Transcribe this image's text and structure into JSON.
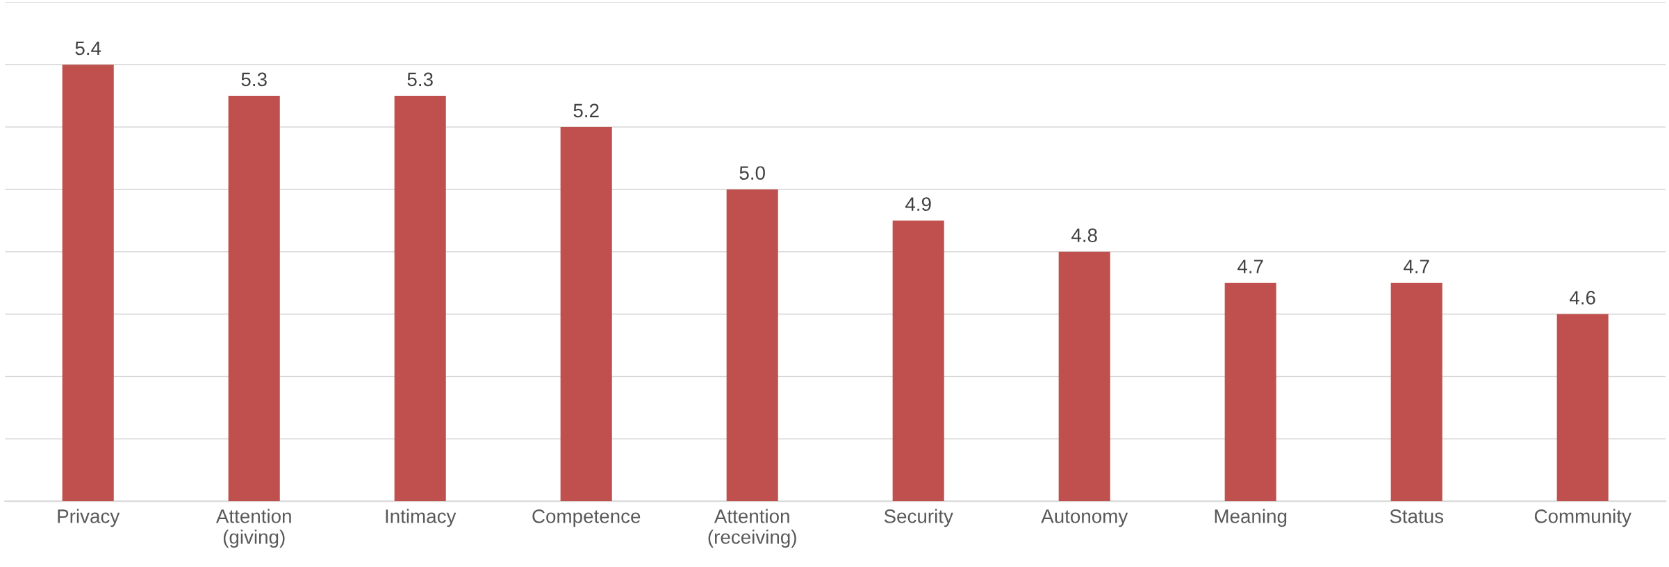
{
  "chart_data": {
    "type": "bar",
    "categories": [
      "Privacy",
      "Attention\n(giving)",
      "Intimacy",
      "Competence",
      "Attention\n(receiving)",
      "Security",
      "Autonomy",
      "Meaning",
      "Status",
      "Community"
    ],
    "values": [
      5.4,
      5.3,
      5.3,
      5.2,
      5.0,
      4.9,
      4.8,
      4.7,
      4.7,
      4.6
    ],
    "color": "#c0504d",
    "ylim": [
      4.0,
      5.6
    ],
    "yticks": [
      {
        "value": 4.0,
        "label": null
      },
      {
        "value": 4.2,
        "label": null
      },
      {
        "value": 4.4,
        "label": null
      },
      {
        "value": 4.6,
        "label": null
      },
      {
        "value": 4.8,
        "label": null
      },
      {
        "value": 5.0,
        "label": null
      },
      {
        "value": 5.2,
        "label": null
      },
      {
        "value": 5.4,
        "label": null
      },
      {
        "value": 5.6,
        "label": null
      }
    ],
    "tick_labels": "x",
    "grid": "y",
    "value_labels": [
      "5.4",
      "5.3",
      "5.3",
      "5.2",
      "5.0",
      "4.9",
      "4.8",
      "4.7",
      "4.7",
      "4.6"
    ]
  }
}
